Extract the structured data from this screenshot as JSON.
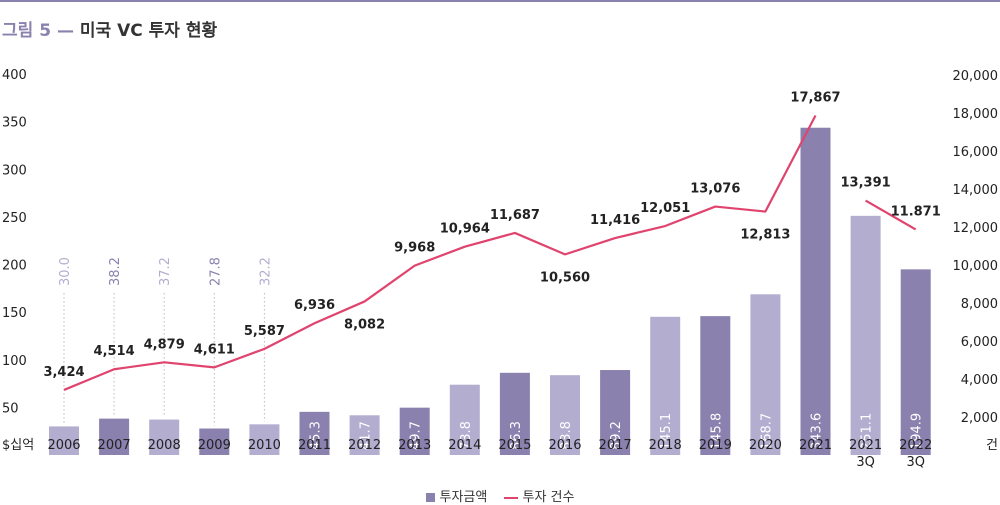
{
  "title": {
    "figure_label": "그림 5",
    "dash": "—",
    "text": "미국 VC 투자 현황"
  },
  "legend": {
    "bar_label": "투자금액",
    "line_label": "투자 건수"
  },
  "colors": {
    "bar_dark": "#8a81ae",
    "bar_light": "#b3add0",
    "line": "#e0446e",
    "dotted": "#bbbbbb",
    "text": "#222222",
    "accent": "#8a81ae"
  },
  "chart_data": {
    "type": "bar",
    "categories": [
      "2006",
      "2007",
      "2008",
      "2009",
      "2010",
      "2011",
      "2012",
      "2013",
      "2014",
      "2015",
      "2016",
      "2017",
      "2018",
      "2019",
      "2020",
      "2021",
      "2021\n3Q",
      "2022\n3Q"
    ],
    "left_axis": {
      "label": "$십억",
      "ticks": [
        "50",
        "100",
        "150",
        "200",
        "250",
        "300",
        "350",
        "400"
      ],
      "range": [
        0,
        400
      ]
    },
    "right_axis": {
      "label": "건",
      "ticks": [
        "2,000",
        "4,000",
        "6,000",
        "8,000",
        "10,000",
        "12,000",
        "14,000",
        "16,000",
        "18,000",
        "20,000"
      ],
      "range": [
        0,
        20000
      ]
    },
    "series": [
      {
        "name": "투자금액",
        "type": "bar",
        "values": [
          30.0,
          38.2,
          37.2,
          27.8,
          32.2,
          45.3,
          41.7,
          49.7,
          73.8,
          86.3,
          83.8,
          89.2,
          145.1,
          145.8,
          168.7,
          343.6,
          251.1,
          194.9
        ],
        "labels": [
          "30.0",
          "38.2",
          "37.2",
          "27.8",
          "32.2",
          "45.3",
          "41.7",
          "49.7",
          "73.8",
          "86.3",
          "83.8",
          "89.2",
          "145.1",
          "145.8",
          "168.7",
          "343.6",
          "251.1",
          "194.9"
        ],
        "shade": [
          "light",
          "dark",
          "light",
          "dark",
          "light",
          "dark",
          "light",
          "dark",
          "light",
          "dark",
          "light",
          "dark",
          "light",
          "dark",
          "light",
          "dark",
          "light",
          "dark"
        ]
      },
      {
        "name": "투자 건수",
        "type": "line",
        "values": [
          3424,
          4514,
          4879,
          4611,
          5587,
          6936,
          8082,
          9968,
          10964,
          11687,
          10560,
          11416,
          12051,
          13076,
          12813,
          17867,
          13391,
          11871
        ],
        "labels": [
          "3,424",
          "4,514",
          "4,879",
          "4,611",
          "5,587",
          "6,936",
          "8,082",
          "9,968",
          "10,964",
          "11,687",
          "10,560",
          "11,416",
          "12,051",
          "13,076",
          "12,813",
          "17,867",
          "13,391",
          "11.871"
        ],
        "break_before_index": 16
      }
    ]
  }
}
